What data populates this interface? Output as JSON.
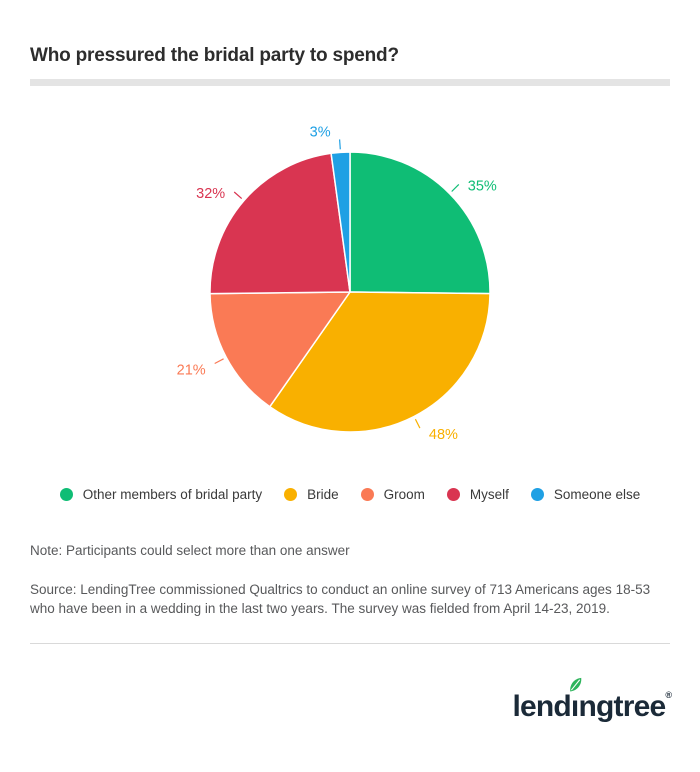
{
  "header": {
    "title": "Who pressured the bridal party to spend?"
  },
  "chart_data": {
    "type": "pie",
    "title": "Who pressured the bridal party to spend?",
    "categories": [
      "Other members of bridal party",
      "Bride",
      "Groom",
      "Myself",
      "Someone else"
    ],
    "values": [
      35,
      48,
      21,
      32,
      3
    ],
    "value_labels": [
      "35%",
      "48%",
      "21%",
      "32%",
      "3%"
    ],
    "colors": [
      "#0fbd75",
      "#f9b000",
      "#fa7a55",
      "#d93551",
      "#1fa0e4"
    ],
    "unit": "%",
    "start_angle": "12 o'clock",
    "direction": "clockwise",
    "legend_position": "bottom",
    "slice_label_style": "percent labels outside with leader lines"
  },
  "legend": {
    "items": [
      {
        "label": "Other members of bridal party",
        "color": "#0fbd75"
      },
      {
        "label": "Bride",
        "color": "#f9b000"
      },
      {
        "label": "Groom",
        "color": "#fa7a55"
      },
      {
        "label": "Myself",
        "color": "#d93551"
      },
      {
        "label": "Someone else",
        "color": "#1fa0e4"
      }
    ]
  },
  "footnotes": {
    "note": "Note: Participants could select more than one answer",
    "source": "Source: LendingTree commissioned Qualtrics to conduct an online survey of 713 Americans ages 18-53 who have been in a wedding in the last two years. The survey was fielded from April 14-23, 2019."
  },
  "logo": {
    "brand_pre": "lend",
    "brand_i": "ı",
    "brand_post": "ngtree",
    "registered": "®",
    "text_color": "#1b2a38",
    "leaf_color": "#2eb45c"
  }
}
